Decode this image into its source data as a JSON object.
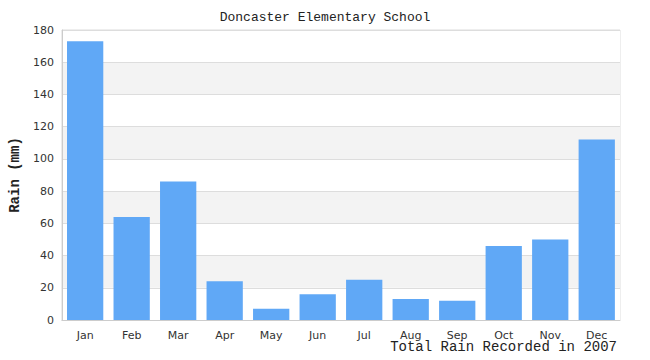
{
  "chart_data": {
    "type": "bar",
    "title": "Doncaster Elementary School",
    "x_label": "Total Rain Recorded in 2007",
    "y_label": "Rain (mm)",
    "categories": [
      "Jan",
      "Feb",
      "Mar",
      "Apr",
      "May",
      "Jun",
      "Jul",
      "Aug",
      "Sep",
      "Oct",
      "Nov",
      "Dec"
    ],
    "values": [
      173,
      64,
      86,
      24,
      7,
      16,
      25,
      13,
      12,
      46,
      50,
      112
    ],
    "color": "#60a8f6",
    "ylim": [
      0,
      180
    ],
    "yticks": [
      0,
      20,
      40,
      60,
      80,
      100,
      120,
      140,
      160,
      180
    ],
    "grid": true
  }
}
